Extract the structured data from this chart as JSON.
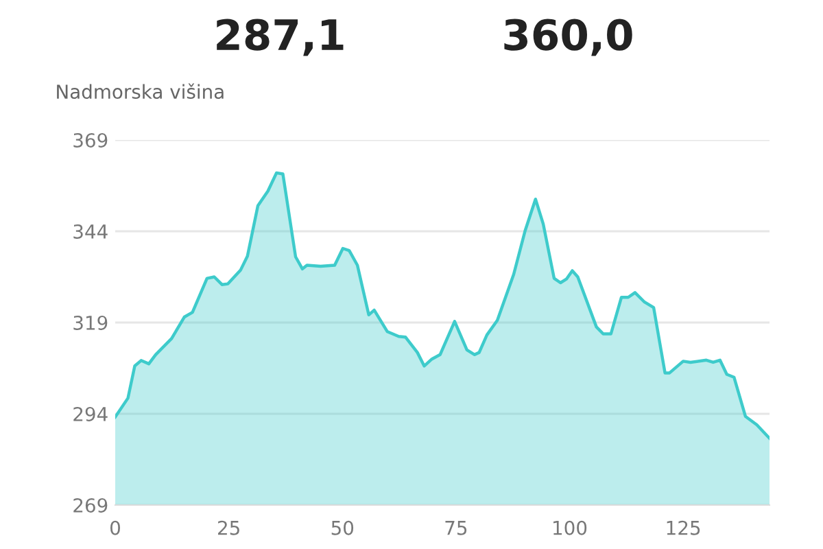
{
  "chart_data": {
    "type": "area",
    "ylabel": "Nadmorska višina",
    "annotations": [
      "287,1",
      "360,0"
    ],
    "x": [
      0,
      2.8,
      4.3,
      5.7,
      7.4,
      8.9,
      12.4,
      15.2,
      17,
      20.2,
      21.8,
      23.5,
      24.8,
      27.6,
      29.1,
      31.4,
      33.6,
      35.5,
      36.9,
      39.7,
      41.2,
      42.2,
      45.2,
      48.3,
      50.1,
      51.5,
      53.3,
      55.8,
      57,
      59.9,
      62.4,
      63.9,
      66.5,
      68,
      69.7,
      71.5,
      74.7,
      77.4,
      79.1,
      80.1,
      81.8,
      84.1,
      87.7,
      90.2,
      92.5,
      94.2,
      96.6,
      98,
      99.3,
      100.6,
      101.8,
      105.9,
      107.4,
      109.1,
      111.4,
      112.9,
      114.4,
      116.5,
      118.5,
      121,
      122,
      125,
      126.6,
      130.1,
      131.6,
      133.1,
      134.6,
      136.2,
      138.7,
      141.2,
      144
    ],
    "series": [
      {
        "color": "#3ecbcb",
        "values": [
          293.1,
          298.3,
          307.1,
          308.6,
          307.7,
          310.2,
          314.6,
          320.5,
          321.8,
          331.1,
          331.5,
          329.4,
          329.6,
          333.4,
          337.2,
          351,
          355,
          360,
          359.7,
          337,
          333.7,
          334.7,
          334.4,
          334.7,
          339.3,
          338.7,
          334.7,
          321.1,
          322.4,
          316.5,
          315.2,
          315,
          310.8,
          307.1,
          309,
          310.2,
          319.3,
          311.5,
          310.2,
          310.8,
          315.6,
          319.6,
          332.2,
          344.1,
          352.8,
          346,
          331.1,
          329.9,
          330.9,
          333.2,
          331.5,
          317.8,
          315.9,
          315.9,
          325.9,
          325.9,
          327.2,
          324.6,
          323.1,
          305.2,
          305.2,
          308.4,
          308.1,
          308.7,
          308.1,
          308.7,
          304.8,
          304,
          293.3,
          291,
          287.3
        ]
      }
    ],
    "xlim": [
      0,
      144
    ],
    "xticks": [
      0,
      25,
      50,
      75,
      100,
      125
    ],
    "ylim": [
      269,
      369
    ],
    "yticks": [
      269,
      294,
      319,
      344,
      369
    ],
    "grid": "y",
    "legend": false,
    "marker": "none",
    "line_style": "solid"
  }
}
